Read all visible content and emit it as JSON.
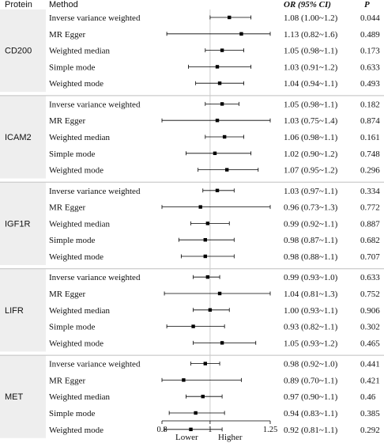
{
  "columns": {
    "protein": "Protein",
    "method": "Method",
    "or": "OR (95% CI)",
    "p": "P"
  },
  "direction_labels": {
    "lower": "Lower",
    "higher": "Higher"
  },
  "colors": {
    "band": "#eeeeee",
    "divider": "#bfbfbf",
    "ref_line": "#cccccc",
    "point": "#000000"
  },
  "chart_data": {
    "type": "forest",
    "x_ticks": [
      "0.8",
      "1",
      "1.25"
    ],
    "x_tick_values": [
      0.8,
      1.0,
      1.25
    ],
    "reference_value": 1.0,
    "xlim": [
      0.8,
      1.25
    ],
    "groups": [
      {
        "protein": "CD200",
        "rows": [
          {
            "method": "Inverse variance weighted",
            "or_text": "1.08 (1.00~1.2)",
            "p": "0.044",
            "or": 1.08,
            "lo": 1.0,
            "hi": 1.17
          },
          {
            "method": "MR Egger",
            "or_text": "1.13 (0.82~1.6)",
            "p": "0.489",
            "or": 1.13,
            "lo": 0.82,
            "hi": 1.25
          },
          {
            "method": "Weighted median",
            "or_text": "1.05 (0.98~1.1)",
            "p": "0.173",
            "or": 1.05,
            "lo": 0.98,
            "hi": 1.14
          },
          {
            "method": "Simple mode",
            "or_text": "1.03 (0.91~1.2)",
            "p": "0.633",
            "or": 1.03,
            "lo": 0.91,
            "hi": 1.17
          },
          {
            "method": "Weighted mode",
            "or_text": "1.04 (0.94~1.1)",
            "p": "0.493",
            "or": 1.04,
            "lo": 0.94,
            "hi": 1.14
          }
        ]
      },
      {
        "protein": "ICAM2",
        "rows": [
          {
            "method": "Inverse variance weighted",
            "or_text": "1.05 (0.98~1.1)",
            "p": "0.182",
            "or": 1.05,
            "lo": 0.98,
            "hi": 1.12
          },
          {
            "method": "MR Egger",
            "or_text": "1.03 (0.75~1.4)",
            "p": "0.874",
            "or": 1.03,
            "lo": 0.8,
            "hi": 1.25
          },
          {
            "method": "Weighted median",
            "or_text": "1.06 (0.98~1.1)",
            "p": "0.161",
            "or": 1.06,
            "lo": 0.98,
            "hi": 1.14
          },
          {
            "method": "Simple mode",
            "or_text": "1.02 (0.90~1.2)",
            "p": "0.748",
            "or": 1.02,
            "lo": 0.9,
            "hi": 1.17
          },
          {
            "method": "Weighted mode",
            "or_text": "1.07 (0.95~1.2)",
            "p": "0.296",
            "or": 1.07,
            "lo": 0.95,
            "hi": 1.2
          }
        ]
      },
      {
        "protein": "IGF1R",
        "rows": [
          {
            "method": "Inverse variance weighted",
            "or_text": "1.03 (0.97~1.1)",
            "p": "0.334",
            "or": 1.03,
            "lo": 0.97,
            "hi": 1.1
          },
          {
            "method": "MR Egger",
            "or_text": "0.96 (0.73~1.3)",
            "p": "0.772",
            "or": 0.96,
            "lo": 0.8,
            "hi": 1.25
          },
          {
            "method": "Weighted median",
            "or_text": "0.99 (0.92~1.1)",
            "p": "0.887",
            "or": 0.99,
            "lo": 0.92,
            "hi": 1.08
          },
          {
            "method": "Simple mode",
            "or_text": "0.98 (0.87~1.1)",
            "p": "0.682",
            "or": 0.98,
            "lo": 0.87,
            "hi": 1.1
          },
          {
            "method": "Weighted mode",
            "or_text": "0.98 (0.88~1.1)",
            "p": "0.707",
            "or": 0.98,
            "lo": 0.88,
            "hi": 1.1
          }
        ]
      },
      {
        "protein": "LIFR",
        "rows": [
          {
            "method": "Inverse variance weighted",
            "or_text": "0.99 (0.93~1.0)",
            "p": "0.633",
            "or": 0.99,
            "lo": 0.93,
            "hi": 1.04
          },
          {
            "method": "MR Egger",
            "or_text": "1.04 (0.81~1.3)",
            "p": "0.752",
            "or": 1.04,
            "lo": 0.81,
            "hi": 1.25
          },
          {
            "method": "Weighted median",
            "or_text": "1.00 (0.93~1.1)",
            "p": "0.906",
            "or": 1.0,
            "lo": 0.93,
            "hi": 1.08
          },
          {
            "method": "Simple mode",
            "or_text": "0.93 (0.82~1.1)",
            "p": "0.302",
            "or": 0.93,
            "lo": 0.82,
            "hi": 1.06
          },
          {
            "method": "Weighted mode",
            "or_text": "1.05 (0.93~1.2)",
            "p": "0.465",
            "or": 1.05,
            "lo": 0.93,
            "hi": 1.19
          }
        ]
      },
      {
        "protein": "MET",
        "rows": [
          {
            "method": "Inverse variance weighted",
            "or_text": "0.98 (0.92~1.0)",
            "p": "0.441",
            "or": 0.98,
            "lo": 0.92,
            "hi": 1.04
          },
          {
            "method": "MR Egger",
            "or_text": "0.89 (0.70~1.1)",
            "p": "0.421",
            "or": 0.89,
            "lo": 0.8,
            "hi": 1.13
          },
          {
            "method": "Weighted median",
            "or_text": "0.97 (0.90~1.1)",
            "p": "0.46",
            "or": 0.97,
            "lo": 0.9,
            "hi": 1.05
          },
          {
            "method": "Simple mode",
            "or_text": "0.94 (0.83~1.1)",
            "p": "0.385",
            "or": 0.94,
            "lo": 0.83,
            "hi": 1.06
          },
          {
            "method": "Weighted mode",
            "or_text": "0.92 (0.81~1.1)",
            "p": "0.292",
            "or": 0.92,
            "lo": 0.81,
            "hi": 1.05
          }
        ]
      }
    ]
  }
}
